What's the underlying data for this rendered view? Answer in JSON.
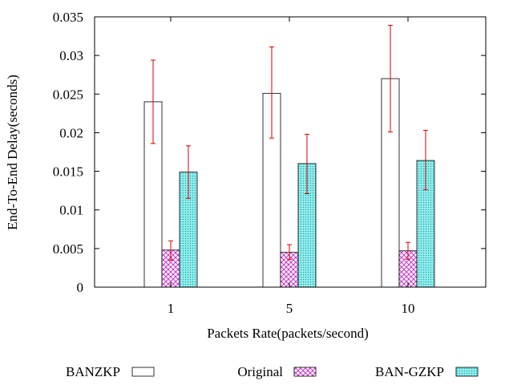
{
  "chart_data": {
    "type": "bar",
    "title": "",
    "xlabel": "Packets Rate(packets/second)",
    "ylabel": "End-To-End Delay(seconds)",
    "ylim": [
      0,
      0.035
    ],
    "yticks": [
      "0",
      "0.005",
      "0.01",
      "0.015",
      "0.02",
      "0.025",
      "0.03",
      "0.035"
    ],
    "ytick_values": [
      0,
      0.005,
      0.01,
      0.015,
      0.02,
      0.025,
      0.03,
      0.035
    ],
    "categories": [
      "1",
      "5",
      "10"
    ],
    "grid": false,
    "legend_position": "bottom",
    "series": [
      {
        "name": "BANZKP",
        "pattern": "solid-white",
        "values": [
          0.024,
          0.0251,
          0.027
        ],
        "err_low": [
          0.0186,
          0.0193,
          0.0201
        ],
        "err_high": [
          0.0294,
          0.0311,
          0.0339
        ]
      },
      {
        "name": "Original",
        "pattern": "crosshatch-magenta",
        "values": [
          0.0048,
          0.0045,
          0.0047
        ],
        "err_low": [
          0.0035,
          0.0036,
          0.0036
        ],
        "err_high": [
          0.006,
          0.0055,
          0.0058
        ]
      },
      {
        "name": "BAN-GZKP",
        "pattern": "dotted-cyan",
        "values": [
          0.0149,
          0.016,
          0.0164
        ],
        "err_low": [
          0.0115,
          0.0121,
          0.0126
        ],
        "err_high": [
          0.0183,
          0.0198,
          0.0203
        ]
      }
    ],
    "colors": {
      "error_bar": "#d40000",
      "magenta": "#cc33cc",
      "cyan_fill": "#7fe6e6",
      "cyan_dot": "#2aa7a7",
      "axis": "#000000"
    }
  }
}
